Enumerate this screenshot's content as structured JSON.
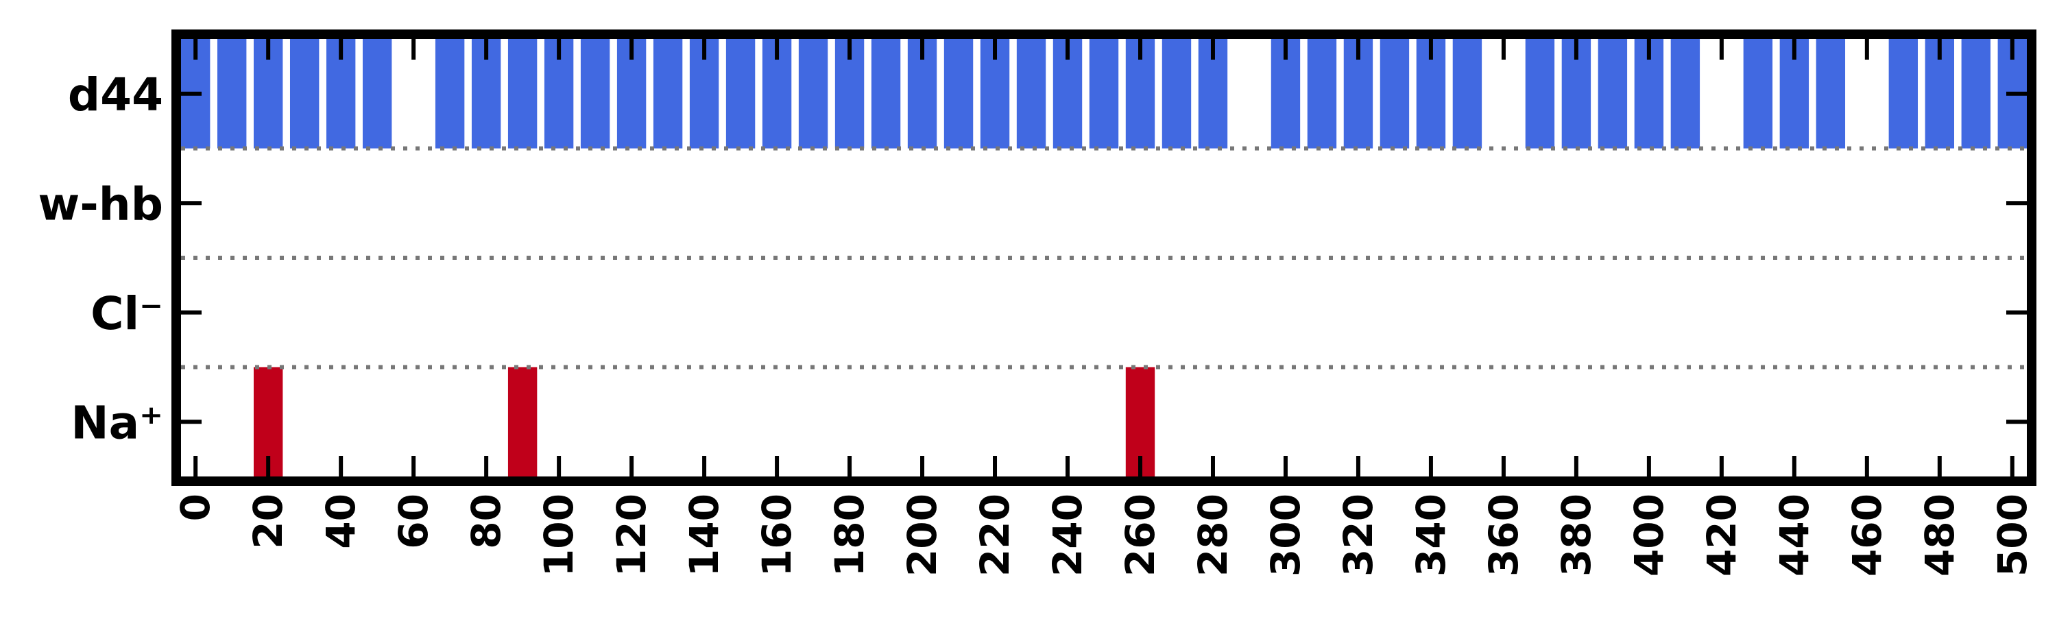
{
  "chart_data": {
    "type": "bar",
    "title": "",
    "xlabel": "",
    "ylabel": "",
    "xlim": [
      -4,
      504
    ],
    "xticks": [
      0,
      20,
      40,
      60,
      80,
      100,
      120,
      140,
      160,
      180,
      200,
      220,
      240,
      260,
      280,
      300,
      320,
      340,
      360,
      380,
      400,
      420,
      440,
      460,
      480,
      500
    ],
    "grid": "dotted separators between rows",
    "rows": [
      {
        "label": "d44",
        "color": "#4169E1",
        "x": [
          0,
          10,
          20,
          30,
          40,
          50,
          70,
          80,
          90,
          100,
          110,
          120,
          130,
          140,
          150,
          160,
          170,
          180,
          190,
          200,
          210,
          220,
          230,
          240,
          250,
          260,
          270,
          280,
          300,
          310,
          320,
          330,
          340,
          350,
          370,
          380,
          390,
          400,
          410,
          430,
          440,
          450,
          470,
          480,
          490,
          500
        ]
      },
      {
        "label": "w-hb",
        "color": "#4169E1",
        "x": []
      },
      {
        "label": "Cl⁻",
        "color": "#C0001A",
        "x": []
      },
      {
        "label": "Na⁺",
        "color": "#C0001A",
        "x": [
          20,
          90,
          260
        ]
      }
    ]
  }
}
